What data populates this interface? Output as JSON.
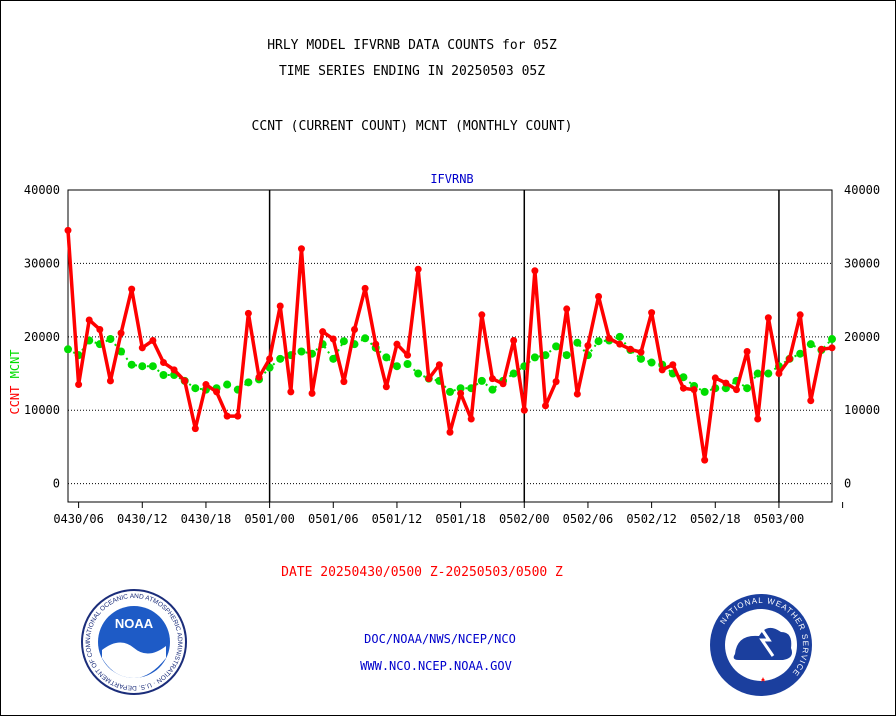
{
  "header": {
    "title_line1": "HRLY MODEL IFVRNB DATA COUNTS for 05Z",
    "title_line2": "TIME SERIES ENDING IN 20250503 05Z",
    "subtitle": "CCNT (CURRENT COUNT) MCNT (MONTHLY COUNT)"
  },
  "footer": {
    "date_range": "DATE 20250430/0500 Z-20250503/0500 Z",
    "org": "DOC/NOAA/NWS/NCEP/NCO",
    "url": "WWW.NCO.NCEP.NOAA.GOV"
  },
  "logos": {
    "noaa_text": "NOAA",
    "noaa_ring_text": "NATIONAL OCEANIC AND ATMOSPHERIC ADMINISTRATION · U.S. DEPARTMENT OF COMMERCE ·",
    "nws_ring_text": "NATIONAL WEATHER SERVICE"
  },
  "colors": {
    "ccnt": "#ff0000",
    "mcnt": "#00dd00",
    "title": "#000000",
    "plot_title": "#0000cc",
    "footer_date": "#ff0000",
    "footer_org": "#0000cc"
  },
  "chart_data": {
    "type": "line",
    "title": "IFVRNB",
    "ylabel_left_parts": [
      {
        "text": "CCNT",
        "color": "#ff0000"
      },
      {
        "text": "MCNT",
        "color": "#00dd00"
      }
    ],
    "ylim": [
      -2500,
      40000
    ],
    "yticks": [
      0,
      10000,
      20000,
      30000,
      40000
    ],
    "ytick_labels": [
      "0",
      "10000",
      "20000",
      "30000",
      "40000"
    ],
    "grid": "horizontal dotted",
    "x_hours_per_point": 1,
    "xlim_hours": [
      0,
      72
    ],
    "xticks_hours": [
      1,
      7,
      13,
      19,
      25,
      31,
      37,
      43,
      49,
      55,
      61,
      67,
      73
    ],
    "xtick_labels": [
      "0430/06",
      "0430/12",
      "0430/18",
      "0501/00",
      "0501/06",
      "0501/12",
      "0501/18",
      "0502/00",
      "0502/06",
      "0502/12",
      "0502/18",
      "0503/00"
    ],
    "day_boundaries_hours": [
      19,
      43,
      67
    ],
    "series": [
      {
        "name": "CCNT",
        "values": [
          34500,
          13500,
          22300,
          21000,
          14000,
          20500,
          26500,
          18500,
          19500,
          16500,
          15500,
          14000,
          7500,
          13500,
          12500,
          9200,
          9200,
          23200,
          14500,
          17000,
          24200,
          12500,
          32000,
          12300,
          20700,
          19700,
          13900,
          21000,
          26600,
          19000,
          13200,
          19000,
          17500,
          29200,
          14300,
          16200,
          7000,
          12300,
          8800,
          23000,
          14300,
          13600,
          19500,
          10000,
          29000,
          10600,
          13900,
          23800,
          12200,
          18800,
          25500,
          19800,
          19000,
          18300,
          17900,
          23300,
          15500,
          16200,
          13000,
          12800,
          3200,
          14400,
          13700,
          12800,
          18000,
          8800,
          22600,
          15000,
          17000,
          23000,
          11300,
          18300,
          18500
        ]
      },
      {
        "name": "MCNT",
        "values": [
          18300,
          17500,
          19500,
          19000,
          19700,
          18000,
          16200,
          16000,
          16000,
          14800,
          14800,
          14000,
          13000,
          12800,
          13000,
          13500,
          12800,
          13800,
          14200,
          15800,
          17000,
          17500,
          18000,
          17700,
          19000,
          17000,
          19400,
          19000,
          19800,
          18500,
          17200,
          16000,
          16300,
          15000,
          14300,
          14000,
          12500,
          13000,
          13000,
          14000,
          12800,
          14000,
          15000,
          16000,
          17200,
          17500,
          18700,
          17500,
          19200,
          17500,
          19400,
          19500,
          20000,
          18200,
          17000,
          16500,
          16200,
          15000,
          14500,
          13300,
          12500,
          13000,
          13000,
          14000,
          13000,
          15000,
          15000,
          16000,
          17000,
          17700,
          19000,
          18200,
          19700
        ]
      }
    ]
  }
}
